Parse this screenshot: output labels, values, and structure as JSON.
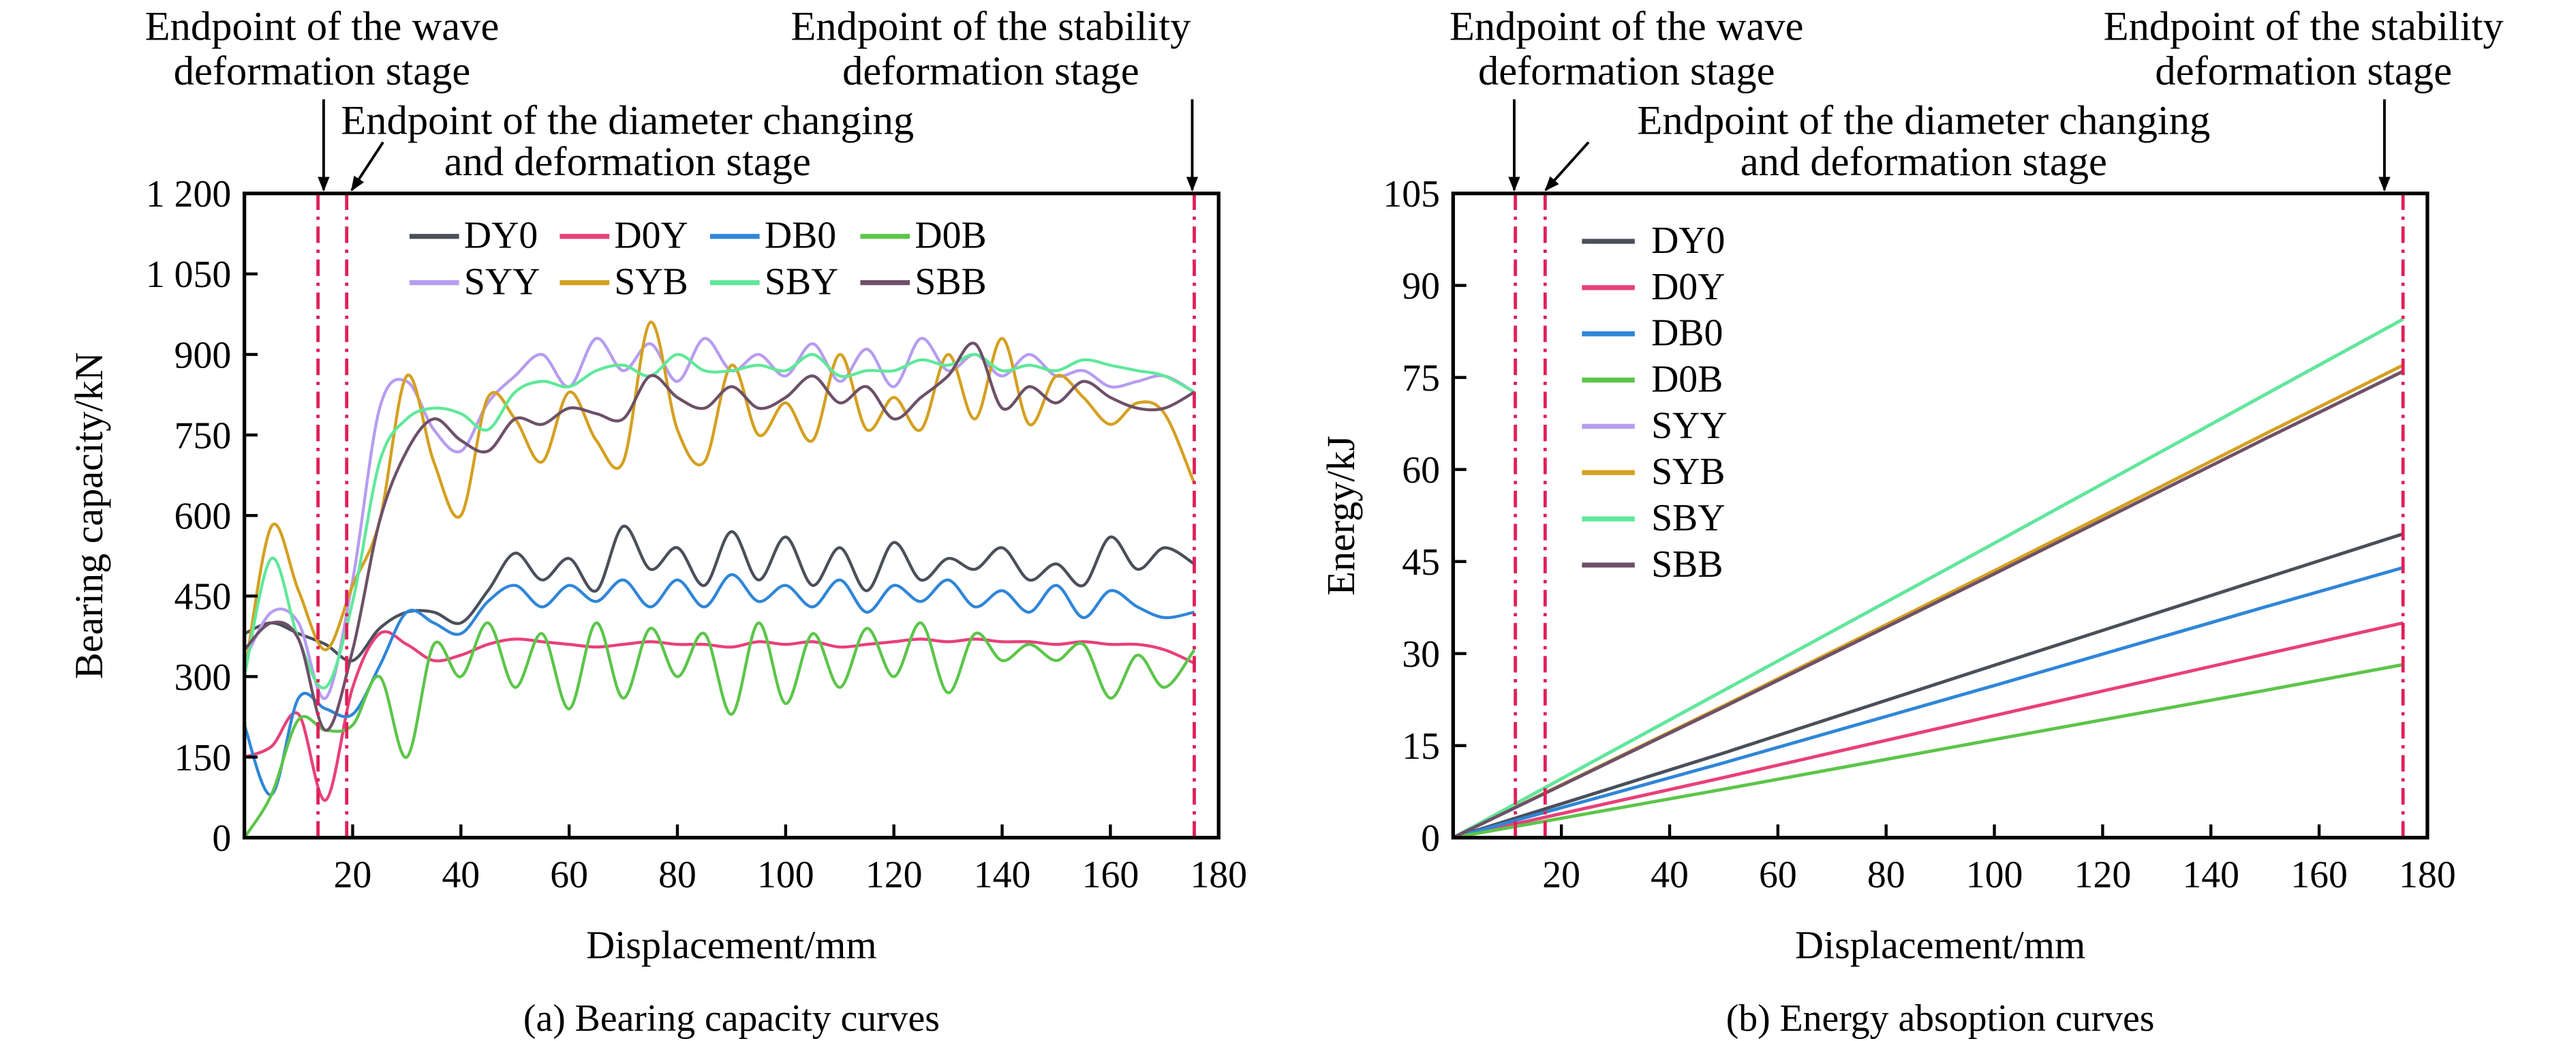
{
  "colors": {
    "DY0": "#4a4f5a",
    "D0Y": "#e8407a",
    "DB0": "#2f86d8",
    "D0B": "#5cc54a",
    "SYY": "#b79cf0",
    "SYB": "#d4a020",
    "SBY": "#5fe89a",
    "SBB": "#6e5068",
    "stage_line": "#e0205a"
  },
  "annotations": {
    "wave_1": "Endpoint of the wave",
    "wave_2": "deformation stage",
    "diam_1": "Endpoint of the diameter changing",
    "diam_2": "and deformation stage",
    "stab_1": "Endpoint of the stability",
    "stab_2": "deformation stage"
  },
  "chart_data": [
    {
      "type": "line",
      "title": "(a) Bearing capacity curves",
      "xlabel": "Displacement/mm",
      "ylabel": "Bearing capacity/kN",
      "xlim": [
        0,
        180
      ],
      "ylim": [
        0,
        1200
      ],
      "xticks": [
        "20",
        "40",
        "60",
        "80",
        "100",
        "120",
        "140",
        "160",
        "180"
      ],
      "yticks": [
        "0",
        "150",
        "300",
        "450",
        "600",
        "750",
        "900",
        "1 050",
        "1 200"
      ],
      "legend": "top-right, 2 rows",
      "stage_lines_x": [
        13.6,
        18.9,
        175.5
      ],
      "x": [
        0,
        5,
        10,
        15,
        20,
        25,
        30,
        35,
        40,
        45,
        50,
        55,
        60,
        65,
        70,
        75,
        80,
        85,
        90,
        95,
        100,
        105,
        110,
        115,
        120,
        125,
        130,
        135,
        140,
        145,
        150,
        155,
        160,
        165,
        170,
        175.5
      ],
      "series": [
        {
          "name": "DY0",
          "values": [
            380,
            400,
            380,
            360,
            330,
            390,
            420,
            420,
            400,
            460,
            530,
            480,
            520,
            460,
            580,
            500,
            540,
            470,
            570,
            480,
            560,
            470,
            540,
            460,
            550,
            480,
            520,
            500,
            540,
            480,
            510,
            470,
            560,
            500,
            540,
            510
          ]
        },
        {
          "name": "D0Y",
          "values": [
            150,
            170,
            230,
            70,
            280,
            380,
            360,
            330,
            340,
            360,
            370,
            365,
            360,
            355,
            360,
            365,
            360,
            360,
            355,
            365,
            360,
            365,
            355,
            360,
            365,
            370,
            365,
            370,
            365,
            365,
            360,
            365,
            360,
            360,
            350,
            325
          ]
        },
        {
          "name": "DB0",
          "values": [
            210,
            80,
            260,
            240,
            230,
            320,
            420,
            400,
            380,
            440,
            470,
            430,
            470,
            440,
            480,
            430,
            480,
            430,
            490,
            440,
            470,
            430,
            480,
            420,
            470,
            440,
            480,
            430,
            460,
            420,
            470,
            410,
            460,
            430,
            410,
            420
          ]
        },
        {
          "name": "D0B",
          "values": [
            0,
            80,
            220,
            200,
            210,
            300,
            150,
            360,
            300,
            400,
            280,
            380,
            240,
            400,
            260,
            390,
            300,
            380,
            230,
            400,
            250,
            380,
            280,
            390,
            300,
            400,
            270,
            380,
            330,
            360,
            330,
            360,
            260,
            340,
            280,
            350
          ]
        },
        {
          "name": "SYY",
          "values": [
            330,
            420,
            400,
            260,
            480,
            800,
            850,
            760,
            720,
            810,
            860,
            900,
            840,
            930,
            870,
            920,
            850,
            930,
            870,
            900,
            860,
            920,
            850,
            910,
            840,
            930,
            870,
            900,
            860,
            900,
            860,
            870,
            840,
            850,
            860,
            830
          ]
        },
        {
          "name": "SYB",
          "values": [
            300,
            580,
            460,
            350,
            470,
            590,
            860,
            700,
            600,
            820,
            780,
            700,
            830,
            740,
            700,
            960,
            760,
            700,
            880,
            750,
            810,
            740,
            900,
            760,
            820,
            760,
            900,
            780,
            930,
            770,
            860,
            820,
            770,
            810,
            790,
            660
          ]
        },
        {
          "name": "SBY",
          "values": [
            300,
            520,
            370,
            280,
            440,
            700,
            780,
            800,
            790,
            760,
            830,
            850,
            840,
            870,
            880,
            860,
            900,
            870,
            870,
            880,
            870,
            900,
            860,
            870,
            870,
            890,
            880,
            900,
            870,
            880,
            870,
            890,
            880,
            870,
            860,
            830
          ]
        },
        {
          "name": "SBB",
          "values": [
            350,
            400,
            370,
            200,
            350,
            590,
            720,
            780,
            740,
            720,
            780,
            770,
            800,
            790,
            780,
            860,
            820,
            800,
            840,
            800,
            820,
            860,
            810,
            840,
            780,
            820,
            860,
            920,
            800,
            840,
            810,
            850,
            820,
            800,
            800,
            830
          ]
        }
      ]
    },
    {
      "type": "line",
      "title": "(b) Energy absoption curves",
      "xlabel": "Displacement/mm",
      "ylabel": "Energy/kJ",
      "xlim": [
        0,
        180
      ],
      "ylim": [
        0,
        105
      ],
      "xticks": [
        "20",
        "40",
        "60",
        "80",
        "100",
        "120",
        "140",
        "160",
        "180"
      ],
      "yticks": [
        "0",
        "15",
        "30",
        "45",
        "60",
        "75",
        "90",
        "105"
      ],
      "legend": "top-left, vertical",
      "stage_lines_x": [
        11.5,
        17,
        175.5
      ],
      "x": [
        0,
        50,
        100,
        150,
        175.5
      ],
      "series": [
        {
          "name": "DY0",
          "values": [
            0,
            13.8,
            28.1,
            42.3,
            49.5
          ]
        },
        {
          "name": "D0Y",
          "values": [
            0,
            9.8,
            19.9,
            29.9,
            35
          ]
        },
        {
          "name": "DB0",
          "values": [
            0,
            12.2,
            24.8,
            37.6,
            44
          ]
        },
        {
          "name": "D0B",
          "values": [
            0,
            7.9,
            16,
            24,
            28.2
          ]
        },
        {
          "name": "SYY",
          "values": [
            0,
            24,
            48,
            72.2,
            84.5
          ]
        },
        {
          "name": "SYB",
          "values": [
            0,
            21.5,
            43.5,
            65.8,
            77
          ]
        },
        {
          "name": "SBY",
          "values": [
            0,
            24,
            48,
            72.2,
            84.5
          ]
        },
        {
          "name": "SBB",
          "values": [
            0,
            21.3,
            43,
            65,
            76
          ]
        }
      ]
    }
  ]
}
